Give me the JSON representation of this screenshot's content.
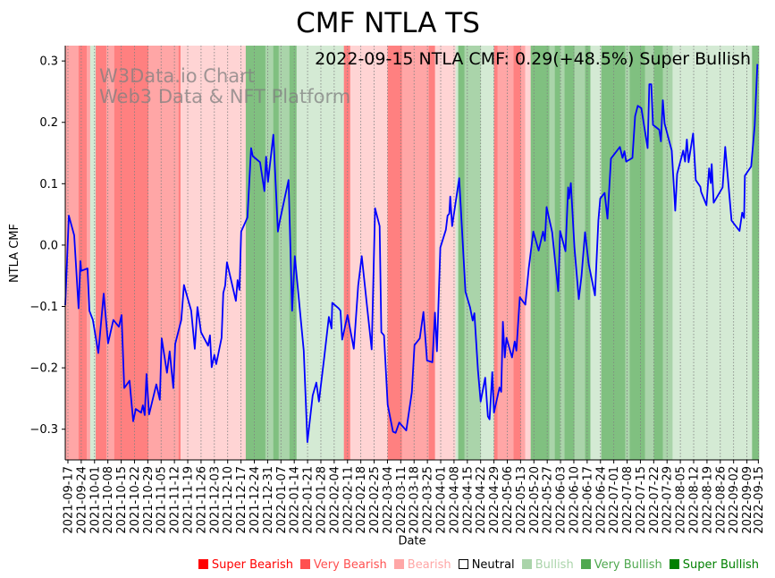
{
  "chart_data": {
    "type": "line",
    "title": "CMF NTLA TS",
    "xlabel": "Date",
    "ylabel": "NTLA CMF",
    "annotation": "2022-09-15 NTLA CMF: 0.29(+48.5%) Super Bullish",
    "watermark": [
      "W3Data.io Chart",
      "Web3 Data & NFT Platform"
    ],
    "x_start_date": "2021-09-17",
    "x_unit": "days since 2021-09-17",
    "xlim": [
      -1.4,
      363.3
    ],
    "ylim": [
      -0.35,
      0.325
    ],
    "yticks": [
      -0.3,
      -0.2,
      -0.1,
      0.0,
      0.1,
      0.2,
      0.3
    ],
    "ytick_labels": [
      "−0.3",
      "−0.2",
      "−0.1",
      "0.0",
      "0.1",
      "0.2",
      "0.3"
    ],
    "xtick_labels": [
      "2021-09-17",
      "2021-09-24",
      "2021-10-01",
      "2021-10-08",
      "2021-10-15",
      "2021-10-22",
      "2021-10-29",
      "2021-11-05",
      "2021-11-12",
      "2021-11-19",
      "2021-11-26",
      "2021-12-03",
      "2021-12-10",
      "2021-12-17",
      "2021-12-24",
      "2021-12-31",
      "2022-01-07",
      "2022-01-14",
      "2022-01-21",
      "2022-01-28",
      "2022-02-04",
      "2022-02-11",
      "2022-02-18",
      "2022-02-25",
      "2022-03-04",
      "2022-03-11",
      "2022-03-18",
      "2022-03-25",
      "2022-04-01",
      "2022-04-08",
      "2022-04-15",
      "2022-04-22",
      "2022-04-29",
      "2022-05-06",
      "2022-05-13",
      "2022-05-20",
      "2022-05-27",
      "2022-06-03",
      "2022-06-10",
      "2022-06-17",
      "2022-06-24",
      "2022-07-01",
      "2022-07-08",
      "2022-07-15",
      "2022-07-22",
      "2022-07-29",
      "2022-08-05",
      "2022-08-12",
      "2022-08-19",
      "2022-08-26",
      "2022-09-02",
      "2022-09-09",
      "2022-09-15"
    ],
    "grid": "vertical dotted at x ticks",
    "line_color": "#0000ff",
    "series": [
      {
        "name": "NTLA CMF",
        "points": [
          [
            -1.4,
            -0.098
          ],
          [
            0.5,
            0.048
          ],
          [
            3.3,
            0.016
          ],
          [
            5.6,
            -0.103
          ],
          [
            6.6,
            -0.026
          ],
          [
            7,
            -0.042
          ],
          [
            10.3,
            -0.038
          ],
          [
            11.3,
            -0.107
          ],
          [
            13.1,
            -0.122
          ],
          [
            16,
            -0.176
          ],
          [
            18.8,
            -0.079
          ],
          [
            21.1,
            -0.16
          ],
          [
            23.9,
            -0.122
          ],
          [
            26.8,
            -0.133
          ],
          [
            28.2,
            -0.114
          ],
          [
            29.6,
            -0.233
          ],
          [
            32.4,
            -0.221
          ],
          [
            34.3,
            -0.287
          ],
          [
            35.7,
            -0.267
          ],
          [
            38.5,
            -0.273
          ],
          [
            39.4,
            -0.261
          ],
          [
            40.4,
            -0.277
          ],
          [
            41.3,
            -0.21
          ],
          [
            42.7,
            -0.276
          ],
          [
            46.5,
            -0.227
          ],
          [
            48.3,
            -0.252
          ],
          [
            49.3,
            -0.152
          ],
          [
            52.1,
            -0.208
          ],
          [
            53.5,
            -0.173
          ],
          [
            55.4,
            -0.233
          ],
          [
            56.4,
            -0.161
          ],
          [
            59.6,
            -0.122
          ],
          [
            61,
            -0.065
          ],
          [
            62,
            -0.076
          ],
          [
            64.8,
            -0.107
          ],
          [
            66.7,
            -0.169
          ],
          [
            68.1,
            -0.101
          ],
          [
            70,
            -0.142
          ],
          [
            73.7,
            -0.164
          ],
          [
            74.7,
            -0.147
          ],
          [
            75.6,
            -0.199
          ],
          [
            77,
            -0.179
          ],
          [
            78,
            -0.194
          ],
          [
            80.8,
            -0.151
          ],
          [
            81.7,
            -0.078
          ],
          [
            82.7,
            -0.066
          ],
          [
            83.6,
            -0.028
          ],
          [
            88.3,
            -0.091
          ],
          [
            89.2,
            -0.057
          ],
          [
            90.2,
            -0.073
          ],
          [
            91.1,
            0.022
          ],
          [
            94.4,
            0.045
          ],
          [
            96.3,
            0.158
          ],
          [
            97.2,
            0.145
          ],
          [
            101,
            0.135
          ],
          [
            103.3,
            0.088
          ],
          [
            104.2,
            0.144
          ],
          [
            105.2,
            0.103
          ],
          [
            108,
            0.18
          ],
          [
            110.4,
            0.022
          ],
          [
            111.3,
            0.038
          ],
          [
            116,
            0.106
          ],
          [
            117.9,
            -0.107
          ],
          [
            119.3,
            -0.018
          ],
          [
            124,
            -0.172
          ],
          [
            125.9,
            -0.321
          ],
          [
            128.7,
            -0.245
          ],
          [
            130.6,
            -0.224
          ],
          [
            132,
            -0.255
          ],
          [
            134.8,
            -0.182
          ],
          [
            137.2,
            -0.117
          ],
          [
            138.6,
            -0.136
          ],
          [
            139,
            -0.094
          ],
          [
            142.3,
            -0.103
          ],
          [
            143.3,
            -0.107
          ],
          [
            144.2,
            -0.154
          ],
          [
            147,
            -0.114
          ],
          [
            150.3,
            -0.169
          ],
          [
            152.6,
            -0.066
          ],
          [
            154.5,
            -0.018
          ],
          [
            157.3,
            -0.101
          ],
          [
            159.7,
            -0.17
          ],
          [
            161.5,
            0.06
          ],
          [
            163.9,
            0.031
          ],
          [
            164.8,
            -0.142
          ],
          [
            166.2,
            -0.147
          ],
          [
            168.1,
            -0.26
          ],
          [
            170.9,
            -0.304
          ],
          [
            172.3,
            -0.306
          ],
          [
            174.2,
            -0.289
          ],
          [
            177.9,
            -0.302
          ],
          [
            180.8,
            -0.24
          ],
          [
            182.2,
            -0.163
          ],
          [
            185,
            -0.152
          ],
          [
            186.9,
            -0.109
          ],
          [
            188.8,
            -0.188
          ],
          [
            191.6,
            -0.191
          ],
          [
            193,
            -0.11
          ],
          [
            194,
            -0.173
          ],
          [
            195.8,
            -0.004
          ],
          [
            198.7,
            0.025
          ],
          [
            199.6,
            0.048
          ],
          [
            200.5,
            0.051
          ],
          [
            201,
            0.079
          ],
          [
            202,
            0.031
          ],
          [
            205.7,
            0.109
          ],
          [
            209,
            -0.076
          ],
          [
            211.4,
            -0.101
          ],
          [
            212.8,
            -0.123
          ],
          [
            213.7,
            -0.111
          ],
          [
            215.6,
            -0.204
          ],
          [
            217,
            -0.255
          ],
          [
            219.4,
            -0.216
          ],
          [
            220.8,
            -0.279
          ],
          [
            221.7,
            -0.284
          ],
          [
            223.1,
            -0.207
          ],
          [
            224,
            -0.273
          ],
          [
            226.9,
            -0.232
          ],
          [
            227.8,
            -0.239
          ],
          [
            228.7,
            -0.125
          ],
          [
            229.7,
            -0.183
          ],
          [
            230.6,
            -0.151
          ],
          [
            233.5,
            -0.183
          ],
          [
            234.9,
            -0.157
          ],
          [
            235.8,
            -0.172
          ],
          [
            237.6,
            -0.085
          ],
          [
            240.5,
            -0.097
          ],
          [
            242.3,
            -0.038
          ],
          [
            244.7,
            0.022
          ],
          [
            247.5,
            -0.009
          ],
          [
            249.8,
            0.022
          ],
          [
            250.8,
            0.007
          ],
          [
            251.7,
            0.062
          ],
          [
            254.6,
            0.021
          ],
          [
            257.8,
            -0.075
          ],
          [
            258.8,
            0.023
          ],
          [
            261.6,
            -0.01
          ],
          [
            263,
            0.094
          ],
          [
            263.5,
            0.076
          ],
          [
            264.4,
            0.101
          ],
          [
            266.3,
            -0.003
          ],
          [
            268.6,
            -0.088
          ],
          [
            270,
            -0.051
          ],
          [
            271.9,
            0.021
          ],
          [
            273.8,
            -0.031
          ],
          [
            277.1,
            -0.082
          ],
          [
            278.9,
            0.04
          ],
          [
            279.9,
            0.076
          ],
          [
            282.2,
            0.085
          ],
          [
            283.7,
            0.043
          ],
          [
            285.5,
            0.141
          ],
          [
            290.2,
            0.16
          ],
          [
            291.6,
            0.142
          ],
          [
            292.6,
            0.153
          ],
          [
            293.5,
            0.136
          ],
          [
            296.8,
            0.142
          ],
          [
            298.2,
            0.21
          ],
          [
            299.6,
            0.227
          ],
          [
            301.5,
            0.223
          ],
          [
            303.4,
            0.186
          ],
          [
            304.8,
            0.158
          ],
          [
            305.7,
            0.262
          ],
          [
            306.7,
            0.262
          ],
          [
            307.6,
            0.196
          ],
          [
            310.9,
            0.188
          ],
          [
            311.8,
            0.169
          ],
          [
            312.8,
            0.236
          ],
          [
            313.7,
            0.198
          ],
          [
            317.5,
            0.154
          ],
          [
            318.9,
            0.079
          ],
          [
            319.3,
            0.056
          ],
          [
            320.3,
            0.116
          ],
          [
            323.5,
            0.154
          ],
          [
            324.5,
            0.136
          ],
          [
            325.4,
            0.172
          ],
          [
            326.3,
            0.135
          ],
          [
            328.7,
            0.182
          ],
          [
            330.1,
            0.106
          ],
          [
            332.5,
            0.095
          ],
          [
            332.9,
            0.087
          ],
          [
            335.7,
            0.065
          ],
          [
            337.1,
            0.125
          ],
          [
            338,
            0.101
          ],
          [
            338.5,
            0.132
          ],
          [
            339.5,
            0.069
          ],
          [
            344.2,
            0.094
          ],
          [
            345.6,
            0.16
          ],
          [
            348.9,
            0.04
          ],
          [
            353.1,
            0.023
          ],
          [
            354.5,
            0.053
          ],
          [
            355.5,
            0.044
          ],
          [
            355.9,
            0.113
          ],
          [
            359.2,
            0.128
          ],
          [
            361.1,
            0.195
          ],
          [
            362.5,
            0.295
          ]
        ]
      }
    ],
    "band_colors": {
      "super_bearish": "#ff8080",
      "very_bearish": "#ffa6a6",
      "bearish": "#ffd4d4",
      "neutral": "#ffffff",
      "bullish": "#d4ead4",
      "very_bullish": "#aad4aa",
      "super_bullish": "#80c080"
    },
    "bands": [
      {
        "start": -1.4,
        "end": 5.6,
        "level": "very_bearish"
      },
      {
        "start": 5.6,
        "end": 9.9,
        "level": "super_bearish"
      },
      {
        "start": 9.9,
        "end": 11.7,
        "level": "very_bearish"
      },
      {
        "start": 11.7,
        "end": 14.6,
        "level": "bullish"
      },
      {
        "start": 14.6,
        "end": 20.2,
        "level": "super_bearish"
      },
      {
        "start": 20.2,
        "end": 24.4,
        "level": "very_bearish"
      },
      {
        "start": 24.4,
        "end": 42.3,
        "level": "super_bearish"
      },
      {
        "start": 42.3,
        "end": 58.2,
        "level": "very_bearish"
      },
      {
        "start": 58.2,
        "end": 59.2,
        "level": "super_bearish"
      },
      {
        "start": 59.2,
        "end": 93.5,
        "level": "bearish"
      },
      {
        "start": 93.5,
        "end": 103.8,
        "level": "super_bullish"
      },
      {
        "start": 103.8,
        "end": 108,
        "level": "very_bullish"
      },
      {
        "start": 108,
        "end": 110.8,
        "level": "super_bullish"
      },
      {
        "start": 110.8,
        "end": 116.5,
        "level": "very_bullish"
      },
      {
        "start": 116.5,
        "end": 120.2,
        "level": "super_bullish"
      },
      {
        "start": 120.2,
        "end": 145.1,
        "level": "bullish"
      },
      {
        "start": 145.1,
        "end": 148.4,
        "level": "super_bearish"
      },
      {
        "start": 148.4,
        "end": 168.1,
        "level": "bearish"
      },
      {
        "start": 168.1,
        "end": 175.6,
        "level": "super_bearish"
      },
      {
        "start": 175.6,
        "end": 189.7,
        "level": "very_bearish"
      },
      {
        "start": 189.7,
        "end": 193,
        "level": "super_bearish"
      },
      {
        "start": 193,
        "end": 203.8,
        "level": "bearish"
      },
      {
        "start": 203.8,
        "end": 205.2,
        "level": "bullish"
      },
      {
        "start": 205.2,
        "end": 208.5,
        "level": "super_bullish"
      },
      {
        "start": 208.5,
        "end": 217,
        "level": "very_bullish"
      },
      {
        "start": 217,
        "end": 224,
        "level": "bullish"
      },
      {
        "start": 224,
        "end": 225.9,
        "level": "super_bearish"
      },
      {
        "start": 225.9,
        "end": 234.3,
        "level": "very_bearish"
      },
      {
        "start": 234.3,
        "end": 238.1,
        "level": "super_bearish"
      },
      {
        "start": 238.1,
        "end": 240.4,
        "level": "very_bearish"
      },
      {
        "start": 240.4,
        "end": 243.3,
        "level": "bearish"
      },
      {
        "start": 243.3,
        "end": 253.1,
        "level": "super_bullish"
      },
      {
        "start": 253.1,
        "end": 256,
        "level": "very_bullish"
      },
      {
        "start": 256,
        "end": 258.8,
        "level": "super_bullish"
      },
      {
        "start": 258.8,
        "end": 261.1,
        "level": "very_bullish"
      },
      {
        "start": 261.1,
        "end": 266.3,
        "level": "super_bullish"
      },
      {
        "start": 266.3,
        "end": 271.9,
        "level": "very_bullish"
      },
      {
        "start": 271.9,
        "end": 274.7,
        "level": "super_bullish"
      },
      {
        "start": 274.7,
        "end": 280.4,
        "level": "bullish"
      },
      {
        "start": 280.4,
        "end": 293,
        "level": "super_bullish"
      },
      {
        "start": 293,
        "end": 295.4,
        "level": "very_bullish"
      },
      {
        "start": 295.4,
        "end": 303.4,
        "level": "super_bullish"
      },
      {
        "start": 303.4,
        "end": 308.1,
        "level": "very_bullish"
      },
      {
        "start": 308.1,
        "end": 312.8,
        "level": "super_bullish"
      },
      {
        "start": 312.8,
        "end": 317.9,
        "level": "very_bullish"
      },
      {
        "start": 317.9,
        "end": 359.7,
        "level": "bullish"
      },
      {
        "start": 359.7,
        "end": 363.3,
        "level": "super_bullish"
      }
    ],
    "legend": {
      "placement": "bottom-right",
      "items": [
        {
          "label": "Super Bearish",
          "color": "#ff0000",
          "text_color": "#ff0000",
          "hollow": false
        },
        {
          "label": "Very Bearish",
          "color": "#ff5050",
          "text_color": "#ff5050",
          "hollow": false
        },
        {
          "label": "Bearish",
          "color": "#ffa6a6",
          "text_color": "#ffa6a6",
          "hollow": false
        },
        {
          "label": "Neutral",
          "color": "#000000",
          "text_color": "#000000",
          "hollow": true
        },
        {
          "label": "Bullish",
          "color": "#aad4aa",
          "text_color": "#aad4aa",
          "hollow": false
        },
        {
          "label": "Very Bullish",
          "color": "#50a850",
          "text_color": "#50a850",
          "hollow": false
        },
        {
          "label": "Super Bullish",
          "color": "#008000",
          "text_color": "#008000",
          "hollow": false
        }
      ]
    }
  }
}
